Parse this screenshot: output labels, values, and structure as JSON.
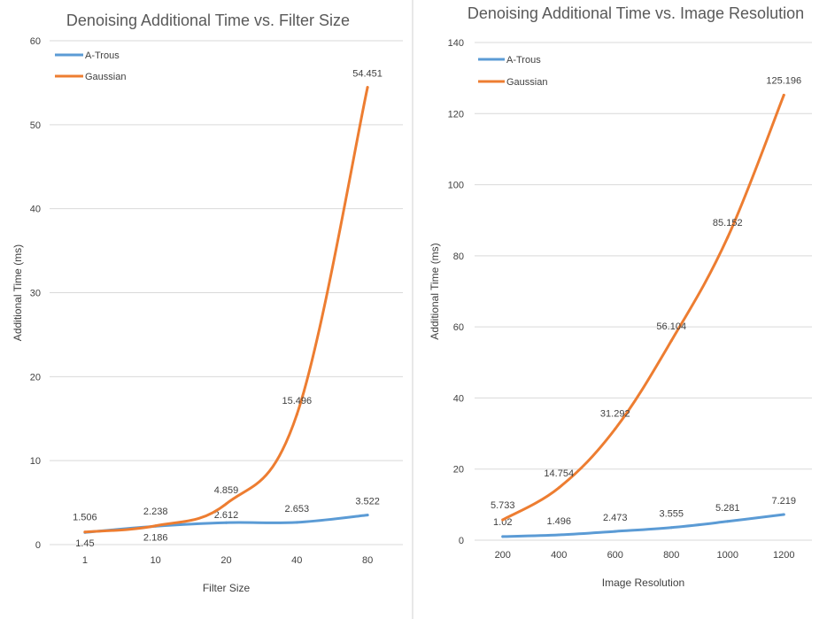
{
  "chart_data": [
    {
      "type": "line",
      "title": "Denoising Additional Time vs. Filter Size",
      "xlabel": "Filter Size",
      "ylabel": "Additional Time (ms)",
      "categories": [
        "1",
        "10",
        "20",
        "40",
        "80"
      ],
      "ylim": [
        0,
        60
      ],
      "yticks": [
        "0",
        "10",
        "20",
        "30",
        "40",
        "50",
        "60"
      ],
      "grid": true,
      "legend_position": "top-left",
      "series": [
        {
          "name": "A-Trous",
          "color": "#5b9bd5",
          "values": [
            1.45,
            2.186,
            2.612,
            2.653,
            3.522
          ],
          "labels": [
            "1.45",
            "2.186",
            "2.612",
            "2.653",
            "3.522"
          ]
        },
        {
          "name": "Gaussian",
          "color": "#ed7d31",
          "values": [
            1.506,
            2.238,
            4.859,
            15.496,
            54.451
          ],
          "labels": [
            "1.506",
            "2.238",
            "4.859",
            "15.496",
            "54.451"
          ]
        }
      ]
    },
    {
      "type": "line",
      "title": "Denoising Additional Time vs. Image Resolution",
      "xlabel": "Image Resolution",
      "ylabel": "Additional Time (ms)",
      "categories": [
        "200",
        "400",
        "600",
        "800",
        "1000",
        "1200"
      ],
      "ylim": [
        0,
        140
      ],
      "yticks": [
        "0",
        "20",
        "40",
        "60",
        "80",
        "100",
        "120",
        "140"
      ],
      "grid": true,
      "legend_position": "top-left",
      "series": [
        {
          "name": "A-Trous",
          "color": "#5b9bd5",
          "values": [
            1.02,
            1.496,
            2.473,
            3.555,
            5.281,
            7.219
          ],
          "labels": [
            "1.02",
            "1.496",
            "2.473",
            "3.555",
            "5.281",
            "7.219"
          ]
        },
        {
          "name": "Gaussian",
          "color": "#ed7d31",
          "values": [
            5.733,
            14.754,
            31.292,
            56.104,
            85.152,
            125.196
          ],
          "labels": [
            "5.733",
            "14.754",
            "31.292",
            "56.104",
            "85.152",
            "125.196"
          ]
        }
      ]
    }
  ]
}
